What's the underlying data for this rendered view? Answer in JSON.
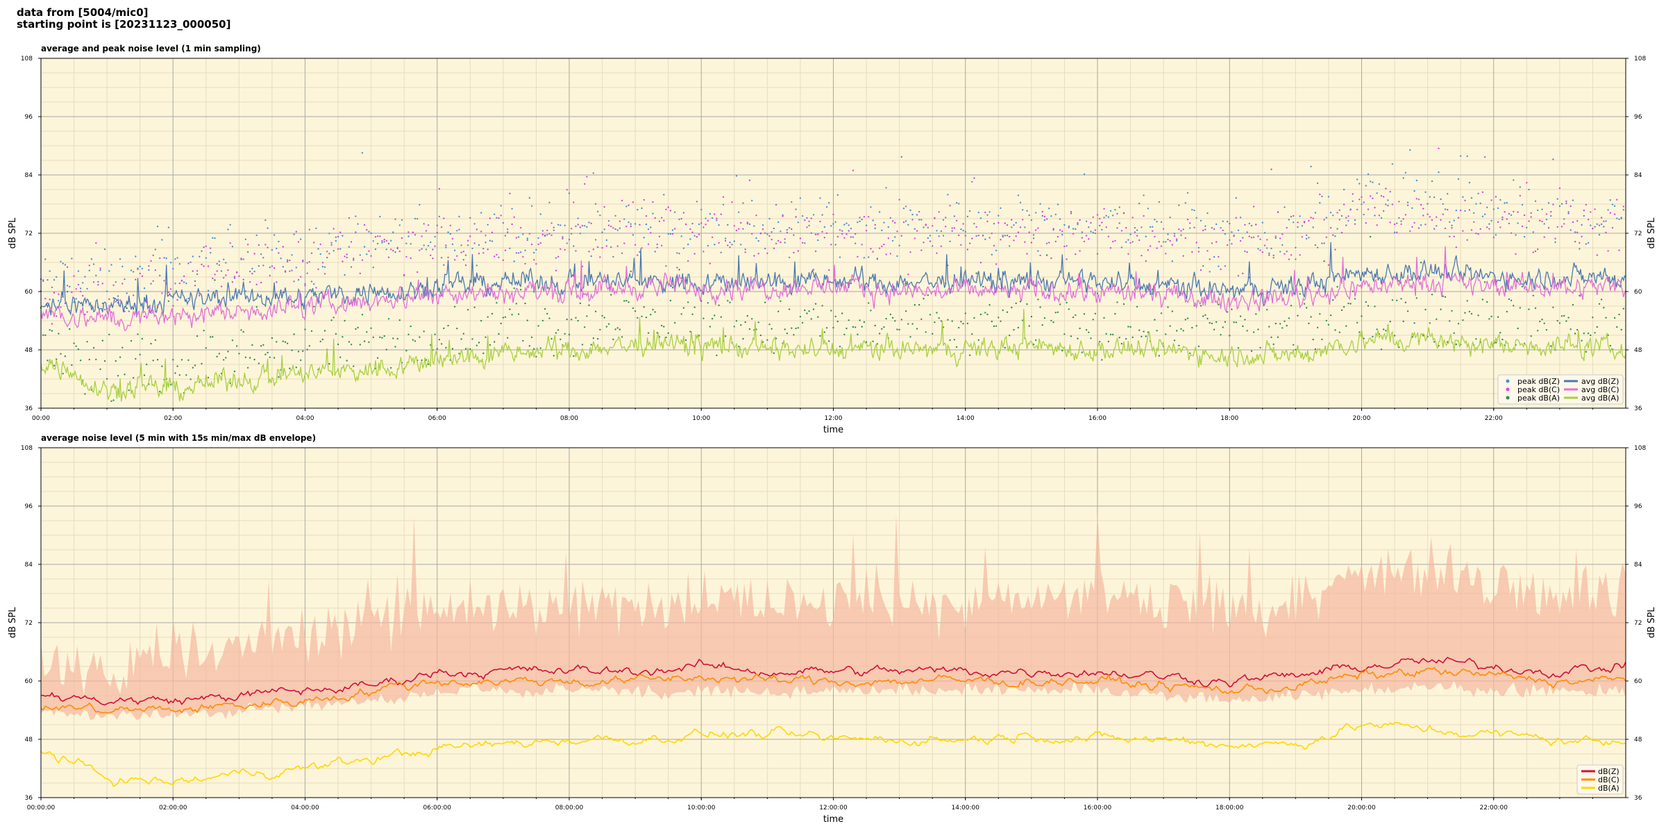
{
  "header": {
    "line1": "data from [5004/mic0]",
    "line2": "starting point is [20231123_000050]"
  },
  "colors": {
    "plot_background": "#fdf5d9",
    "grid_major": "#a8a8a8",
    "grid_minor": "#e6dcc0",
    "peak_z": "#4a90d0",
    "peak_c": "#e040e0",
    "peak_a": "#2e8b57",
    "avg_z": "#4a78b0",
    "avg_c": "#e070d8",
    "avg_a": "#a8d040",
    "env_fill": "#f4b8a0",
    "dbz": "#d0103a",
    "dbc": "#ff8c00",
    "dba": "#ffd700"
  },
  "chart_data": [
    {
      "type": "line",
      "title": "average and peak noise level (1 min sampling)",
      "xlabel": "time",
      "ylabel": "dB SPL",
      "ylabel_right": "dB SPL",
      "xlim": [
        0,
        24
      ],
      "ylim": [
        36,
        108
      ],
      "y_ticks": [
        36,
        48,
        60,
        72,
        84,
        96,
        108
      ],
      "x_tick_labels": [
        "00:00",
        "02:00",
        "04:00",
        "06:00",
        "08:00",
        "10:00",
        "12:00",
        "14:00",
        "16:00",
        "18:00",
        "20:00",
        "22:00"
      ],
      "grid": true,
      "legend_position": "lower-right",
      "legend": {
        "col1": [
          "peak dB(Z)",
          "peak dB(C)",
          "peak dB(A)"
        ],
        "col2": [
          "avg dB(Z)",
          "avg dB(C)",
          "avg dB(A)"
        ]
      },
      "x_hours": [
        0,
        1,
        2,
        3,
        4,
        5,
        6,
        7,
        8,
        9,
        10,
        11,
        12,
        13,
        14,
        15,
        16,
        17,
        18,
        19,
        20,
        21,
        22,
        23,
        24
      ],
      "series": [
        {
          "name": "avg dB(Z)",
          "kind": "line",
          "values": [
            58,
            57,
            58,
            59,
            59,
            60,
            61,
            62,
            62,
            62,
            62,
            62,
            62,
            62,
            62,
            62,
            62,
            61,
            60,
            61,
            64,
            64,
            63,
            63,
            63
          ]
        },
        {
          "name": "avg dB(C)",
          "kind": "line",
          "values": [
            56,
            54,
            55,
            56,
            57,
            58,
            60,
            60,
            60,
            61,
            61,
            61,
            61,
            60,
            60,
            60,
            60,
            59,
            58,
            59,
            61,
            62,
            61,
            61,
            61
          ]
        },
        {
          "name": "avg dB(A)",
          "kind": "line",
          "values": [
            46,
            40,
            40,
            42,
            43,
            44,
            46,
            47,
            48,
            49,
            49,
            48,
            48,
            48,
            48,
            49,
            48,
            48,
            47,
            47,
            50,
            50,
            49,
            49,
            48
          ]
        },
        {
          "name": "peak dB(Z)",
          "kind": "points",
          "values": [
            62,
            62,
            64,
            67,
            67,
            69,
            72,
            72,
            72,
            73,
            73,
            73,
            74,
            73,
            74,
            74,
            74,
            73,
            71,
            72,
            78,
            78,
            76,
            75,
            74
          ]
        },
        {
          "name": "peak dB(C)",
          "kind": "points",
          "values": [
            60,
            59,
            62,
            65,
            66,
            68,
            70,
            71,
            71,
            72,
            72,
            72,
            72,
            71,
            72,
            72,
            72,
            71,
            70,
            71,
            76,
            76,
            74,
            74,
            73
          ]
        },
        {
          "name": "peak dB(A)",
          "kind": "points",
          "values": [
            50,
            44,
            45,
            47,
            48,
            49,
            51,
            52,
            53,
            54,
            54,
            53,
            53,
            53,
            53,
            54,
            53,
            53,
            52,
            52,
            55,
            55,
            54,
            54,
            53
          ]
        }
      ]
    },
    {
      "type": "line",
      "title": "average noise level (5 min with 15s min/max dB envelope)",
      "xlabel": "time",
      "ylabel": "dB SPL",
      "ylabel_right": "dB SPL",
      "xlim": [
        0,
        24
      ],
      "ylim": [
        36,
        108
      ],
      "y_ticks": [
        36,
        48,
        60,
        72,
        84,
        96,
        108
      ],
      "x_tick_labels": [
        "00:00:00",
        "02:00:00",
        "04:00:00",
        "06:00:00",
        "08:00:00",
        "10:00:00",
        "12:00:00",
        "14:00:00",
        "16:00:00",
        "18:00:00",
        "20:00:00",
        "22:00:00"
      ],
      "grid": true,
      "legend_position": "lower-right",
      "legend": [
        "dB(Z)",
        "dB(C)",
        "dB(A)"
      ],
      "x_hours": [
        0,
        1,
        2,
        3,
        4,
        5,
        6,
        7,
        8,
        9,
        10,
        11,
        12,
        13,
        14,
        15,
        16,
        17,
        18,
        19,
        20,
        21,
        22,
        23,
        24
      ],
      "series": [
        {
          "name": "dB(Z)",
          "kind": "line",
          "values": [
            57,
            56,
            56,
            57,
            58,
            59,
            62,
            62,
            62,
            62,
            63,
            62,
            62,
            62,
            62,
            62,
            62,
            61,
            60,
            61,
            63,
            64,
            63,
            62,
            63
          ]
        },
        {
          "name": "dB(C)",
          "kind": "line",
          "values": [
            55,
            54,
            54,
            55,
            56,
            58,
            60,
            60,
            60,
            60,
            61,
            60,
            60,
            60,
            60,
            60,
            60,
            59,
            58,
            59,
            61,
            62,
            61,
            60,
            60
          ]
        },
        {
          "name": "dB(A)",
          "kind": "line",
          "values": [
            46,
            40,
            39,
            41,
            42,
            44,
            46,
            47,
            48,
            48,
            49,
            49,
            48,
            48,
            48,
            49,
            48,
            48,
            47,
            47,
            51,
            50,
            49,
            48,
            47
          ]
        },
        {
          "name": "",
          "kind": "envelope_upper",
          "values": [
            62,
            62,
            66,
            68,
            69,
            72,
            74,
            76,
            76,
            76,
            77,
            77,
            76,
            76,
            77,
            77,
            77,
            76,
            75,
            76,
            82,
            82,
            80,
            79,
            78
          ]
        },
        {
          "name": "",
          "kind": "envelope_lower",
          "values": [
            54,
            53,
            53,
            54,
            55,
            56,
            58,
            58,
            58,
            58,
            58,
            58,
            58,
            58,
            58,
            58,
            58,
            57,
            56,
            57,
            58,
            59,
            58,
            58,
            58
          ]
        }
      ]
    }
  ]
}
